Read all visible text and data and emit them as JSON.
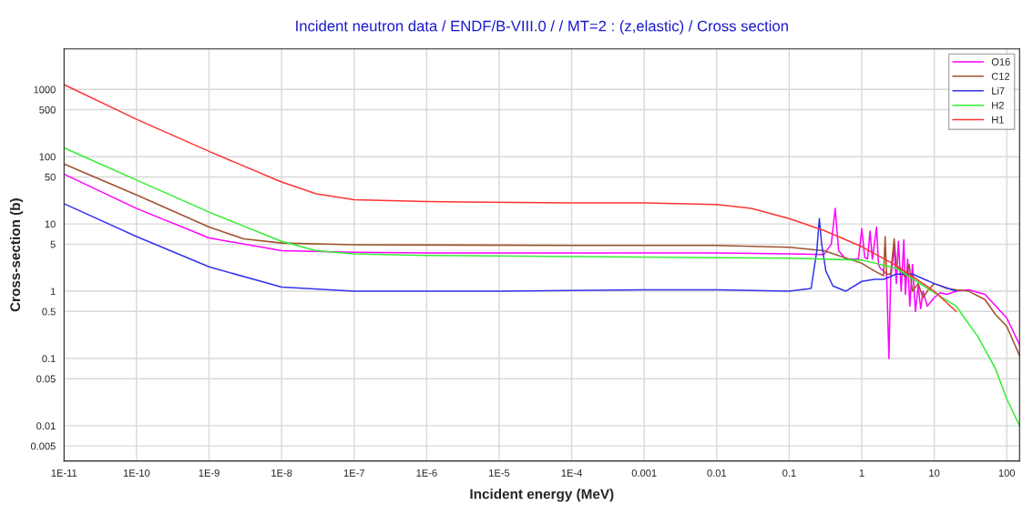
{
  "chart_data": {
    "type": "line",
    "title": "Incident neutron data / ENDF/B-VIII.0 / / MT=2 : (z,elastic) / Cross section",
    "xlabel": "Incident energy (MeV)",
    "ylabel": "Cross-section (b)",
    "log": "xy",
    "grid": true,
    "legend": "top right",
    "line_style": "solid",
    "marker": "none",
    "xlim": [
      1e-11,
      150
    ],
    "ylim": [
      0.003,
      4000
    ],
    "xticks": [
      {
        "value": 1e-11,
        "label": "1E-11"
      },
      {
        "value": 1e-10,
        "label": "1E-10"
      },
      {
        "value": 1e-09,
        "label": "1E-9"
      },
      {
        "value": 1e-08,
        "label": "1E-8"
      },
      {
        "value": 1e-07,
        "label": "1E-7"
      },
      {
        "value": 1e-06,
        "label": "1E-6"
      },
      {
        "value": 1e-05,
        "label": "1E-5"
      },
      {
        "value": 0.0001,
        "label": "1E-4"
      },
      0.001,
      0.01,
      0.1,
      1,
      10,
      100
    ],
    "yticks": [
      0.005,
      0.01,
      0.05,
      0.1,
      0.5,
      1,
      5,
      10,
      50,
      100,
      500,
      1000
    ],
    "series": [
      {
        "name": "O16",
        "color": "#ff00ff",
        "x": [
          1e-11,
          1e-10,
          1e-09,
          1e-08,
          1e-07,
          1e-06,
          0.0001,
          0.01,
          0.1,
          0.3,
          0.38,
          0.43,
          0.48,
          0.6,
          0.9,
          1.0,
          1.1,
          1.2,
          1.3,
          1.4,
          1.6,
          1.7,
          1.8,
          2.0,
          2.2,
          2.37,
          2.5,
          2.8,
          3.0,
          3.2,
          3.5,
          3.8,
          4.0,
          4.3,
          4.6,
          5.0,
          5.5,
          6.0,
          6.5,
          7.0,
          8.0,
          9.0,
          10,
          12,
          15,
          20,
          30,
          50,
          100,
          150
        ],
        "values": [
          55,
          17,
          6.2,
          4.0,
          3.8,
          3.7,
          3.7,
          3.7,
          3.6,
          3.5,
          5,
          17,
          4,
          3.0,
          3.0,
          8.5,
          3.2,
          3.0,
          7.8,
          3.0,
          9,
          2.5,
          2.2,
          2.0,
          1.8,
          0.1,
          1.5,
          4.5,
          1.3,
          5.5,
          1.0,
          5.8,
          0.9,
          3.0,
          0.6,
          2.5,
          0.5,
          1.2,
          0.55,
          1.0,
          0.6,
          0.7,
          0.8,
          0.95,
          0.9,
          1.0,
          1.05,
          0.9,
          0.4,
          0.16
        ]
      },
      {
        "name": "C12",
        "color": "#a0522d",
        "x": [
          1e-11,
          1e-10,
          1e-09,
          3e-09,
          1e-08,
          1e-07,
          0.0001,
          0.01,
          0.1,
          0.3,
          1,
          1.5,
          2.0,
          2.1,
          2.2,
          2.5,
          2.8,
          3.0,
          3.5,
          4.0,
          4.5,
          5.0,
          6.0,
          7.0,
          8.0,
          10,
          15,
          20,
          30,
          50,
          70,
          100,
          150
        ],
        "values": [
          78,
          27,
          9,
          6,
          5.2,
          4.9,
          4.8,
          4.8,
          4.5,
          4.0,
          2.6,
          2.0,
          1.7,
          6.5,
          1.8,
          1.8,
          6,
          2.4,
          2.0,
          1.6,
          2.5,
          1.0,
          1.3,
          0.8,
          1.0,
          1.3,
          1.1,
          1.05,
          1.0,
          0.75,
          0.45,
          0.3,
          0.11
        ]
      },
      {
        "name": "Li7",
        "color": "#3333ee",
        "x": [
          1e-11,
          1e-10,
          1e-09,
          1e-08,
          1e-07,
          1e-05,
          0.001,
          0.01,
          0.1,
          0.2,
          0.24,
          0.26,
          0.28,
          0.32,
          0.4,
          0.6,
          1,
          1.5,
          2,
          3,
          5,
          10,
          20
        ],
        "values": [
          20,
          6.5,
          2.3,
          1.15,
          1.0,
          1.0,
          1.05,
          1.05,
          1.0,
          1.1,
          4,
          12,
          5,
          2,
          1.2,
          1.0,
          1.4,
          1.5,
          1.5,
          1.8,
          1.8,
          1.3,
          1.0
        ]
      },
      {
        "name": "H2",
        "color": "#33ee33",
        "x": [
          1e-11,
          1e-10,
          1e-09,
          1e-08,
          3e-08,
          1e-07,
          1e-06,
          0.1,
          1,
          3,
          10,
          20,
          40,
          70,
          100,
          150
        ],
        "values": [
          135,
          45,
          15,
          5.5,
          4.0,
          3.6,
          3.4,
          3.1,
          2.9,
          2.2,
          0.95,
          0.6,
          0.21,
          0.07,
          0.025,
          0.01
        ]
      },
      {
        "name": "H1",
        "color": "#ff3333",
        "x": [
          1e-11,
          1e-10,
          1e-09,
          1e-08,
          3e-08,
          1e-07,
          1e-06,
          0.0001,
          0.001,
          0.01,
          0.03,
          0.1,
          0.3,
          1,
          3,
          10,
          20
        ],
        "values": [
          1180,
          360,
          120,
          42,
          28,
          23,
          21.5,
          20.5,
          20.5,
          19.5,
          17,
          12,
          8,
          4.6,
          2.4,
          1.0,
          0.5
        ]
      }
    ]
  }
}
